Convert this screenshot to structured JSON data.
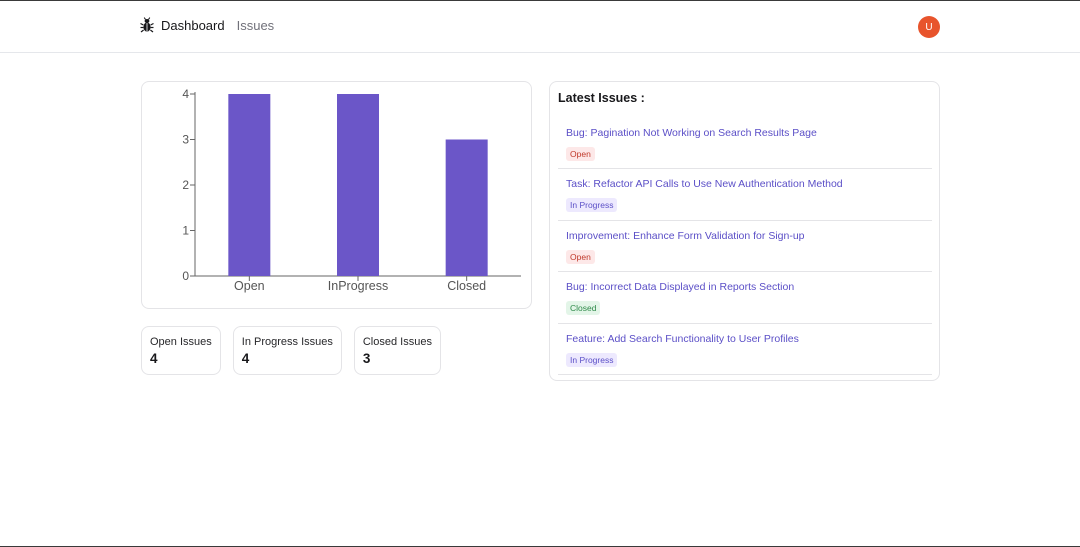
{
  "navbar": {
    "links": [
      "Dashboard",
      "Issues"
    ],
    "avatar_initial": "U"
  },
  "colors": {
    "bar": "#6b56c8",
    "avatar": "#e8542c"
  },
  "chart_data": {
    "type": "bar",
    "categories": [
      "Open",
      "InProgress",
      "Closed"
    ],
    "values": [
      4,
      4,
      3
    ],
    "title": "",
    "xlabel": "",
    "ylabel": "",
    "ylim": [
      0,
      4
    ],
    "yticks": [
      "0",
      "1",
      "2",
      "3",
      "4"
    ],
    "grid": false
  },
  "stats": [
    {
      "label": "Open Issues",
      "value": "4"
    },
    {
      "label": "In Progress Issues",
      "value": "4"
    },
    {
      "label": "Closed Issues",
      "value": "3"
    }
  ],
  "latest": {
    "title": "Latest Issues :",
    "issues": [
      {
        "title": "Bug: Pagination Not Working on Search Results Page",
        "status": "Open"
      },
      {
        "title": "Task: Refactor API Calls to Use New Authentication Method",
        "status": "In Progress"
      },
      {
        "title": "Improvement: Enhance Form Validation for Sign-up",
        "status": "Open"
      },
      {
        "title": "Bug: Incorrect Data Displayed in Reports Section",
        "status": "Closed"
      },
      {
        "title": "Feature: Add Search Functionality to User Profiles",
        "status": "In Progress"
      }
    ]
  }
}
